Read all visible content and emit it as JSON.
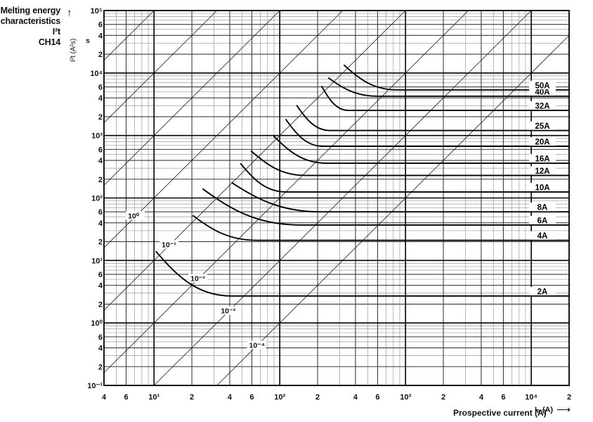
{
  "title": {
    "line1": "Melting energy",
    "line2": "characteristics I²t",
    "line3": "CH14"
  },
  "axes": {
    "y_label": "I²t (A²s)",
    "y_unit": "s",
    "y_arrow": "↑",
    "x_label": "Prospective current (A)",
    "x_label_symbol": "Iₚ (A)",
    "x_arrow": "⟶"
  },
  "chart_data": {
    "type": "line",
    "title": "Melting energy characteristics I²t — CH14",
    "x_axis": {
      "label": "Prospective current (A)",
      "scale": "log",
      "min": 4,
      "max": 20000
    },
    "y_axis": {
      "label": "I²t (A²s)",
      "scale": "log",
      "min": 0.1,
      "max": 100000
    },
    "grid": "log-log full decade grid, sub-lines at 2–9",
    "x_ticks": [
      [
        4,
        "4"
      ],
      [
        6,
        "6"
      ],
      [
        10,
        "10¹"
      ],
      [
        20,
        "2"
      ],
      [
        40,
        "4"
      ],
      [
        60,
        "6"
      ],
      [
        100,
        "10²"
      ],
      [
        200,
        "2"
      ],
      [
        400,
        "4"
      ],
      [
        600,
        "6"
      ],
      [
        1000,
        "10³"
      ],
      [
        2000,
        "2"
      ],
      [
        4000,
        "4"
      ],
      [
        6000,
        "6"
      ],
      [
        10000,
        "10⁴"
      ],
      [
        20000,
        "2"
      ]
    ],
    "y_ticks": [
      [
        100000,
        "10⁵"
      ],
      [
        60000,
        "6"
      ],
      [
        40000,
        "4"
      ],
      [
        20000,
        "2"
      ],
      [
        10000,
        "10⁴"
      ],
      [
        6000,
        "6"
      ],
      [
        4000,
        "4"
      ],
      [
        2000,
        "2"
      ],
      [
        1000,
        "10³"
      ],
      [
        600,
        "6"
      ],
      [
        400,
        "4"
      ],
      [
        200,
        "2"
      ],
      [
        100,
        "10²"
      ],
      [
        60,
        "6"
      ],
      [
        40,
        "4"
      ],
      [
        20,
        "2"
      ],
      [
        10,
        "10¹"
      ],
      [
        6,
        "6"
      ],
      [
        4,
        "4"
      ],
      [
        2,
        "2"
      ],
      [
        1,
        "10⁰"
      ],
      [
        0.6,
        "6"
      ],
      [
        0.4,
        "4"
      ],
      [
        0.2,
        "2"
      ],
      [
        0.1,
        "10⁻¹"
      ]
    ],
    "time_lines": [
      {
        "t_seconds": 1000
      },
      {
        "t_seconds": 100
      },
      {
        "t_seconds": 10
      },
      {
        "t_seconds": 1,
        "label": "10⁰",
        "label_at_current": 6.2
      },
      {
        "t_seconds": 0.1,
        "label": "10⁻¹",
        "label_at_current": 11.5
      },
      {
        "t_seconds": 0.01,
        "label": "10⁻²",
        "label_at_current": 19.5
      },
      {
        "t_seconds": 0.001,
        "label": "10⁻³",
        "label_at_current": 34
      },
      {
        "t_seconds": 0.0001,
        "label": "10⁻⁴",
        "label_at_current": 57
      }
    ],
    "series_note": "points = [prospective current A, melting I²t A²s]: curve start, knee (min I²t plateau), plateau end",
    "series": [
      {
        "name": "2A",
        "points": [
          [
            10.4,
            13.8
          ],
          [
            41,
            2.7
          ],
          [
            20000,
            2.7
          ]
        ]
      },
      {
        "name": "4A",
        "points": [
          [
            20.5,
            52
          ],
          [
            66,
            21
          ],
          [
            20000,
            21
          ]
        ]
      },
      {
        "name": "6A",
        "points": [
          [
            24.5,
            139
          ],
          [
            145,
            37
          ],
          [
            20000,
            37
          ]
        ]
      },
      {
        "name": "8A",
        "points": [
          [
            41.7,
            175
          ],
          [
            210,
            60
          ],
          [
            20000,
            60
          ]
        ]
      },
      {
        "name": "10A",
        "points": [
          [
            49,
            352
          ],
          [
            112,
            125
          ],
          [
            20000,
            125
          ]
        ]
      },
      {
        "name": "12A",
        "points": [
          [
            59.5,
            560
          ],
          [
            160,
            230
          ],
          [
            20000,
            230
          ]
        ]
      },
      {
        "name": "16A",
        "points": [
          [
            90,
            970
          ],
          [
            235,
            360
          ],
          [
            20000,
            360
          ]
        ]
      },
      {
        "name": "20A",
        "points": [
          [
            112,
            1800
          ],
          [
            222,
            670
          ],
          [
            20000,
            670
          ]
        ]
      },
      {
        "name": "25A",
        "points": [
          [
            137,
            3000
          ],
          [
            252,
            1200
          ],
          [
            20000,
            1200
          ]
        ]
      },
      {
        "name": "32A",
        "points": [
          [
            216,
            6100
          ],
          [
            350,
            2530
          ],
          [
            20000,
            2530
          ]
        ]
      },
      {
        "name": "40A",
        "points": [
          [
            245,
            8300
          ],
          [
            600,
            4250
          ],
          [
            20000,
            4250
          ]
        ]
      },
      {
        "name": "50A",
        "points": [
          [
            326,
            13300
          ],
          [
            855,
            5370
          ],
          [
            20000,
            5370
          ]
        ]
      }
    ]
  }
}
